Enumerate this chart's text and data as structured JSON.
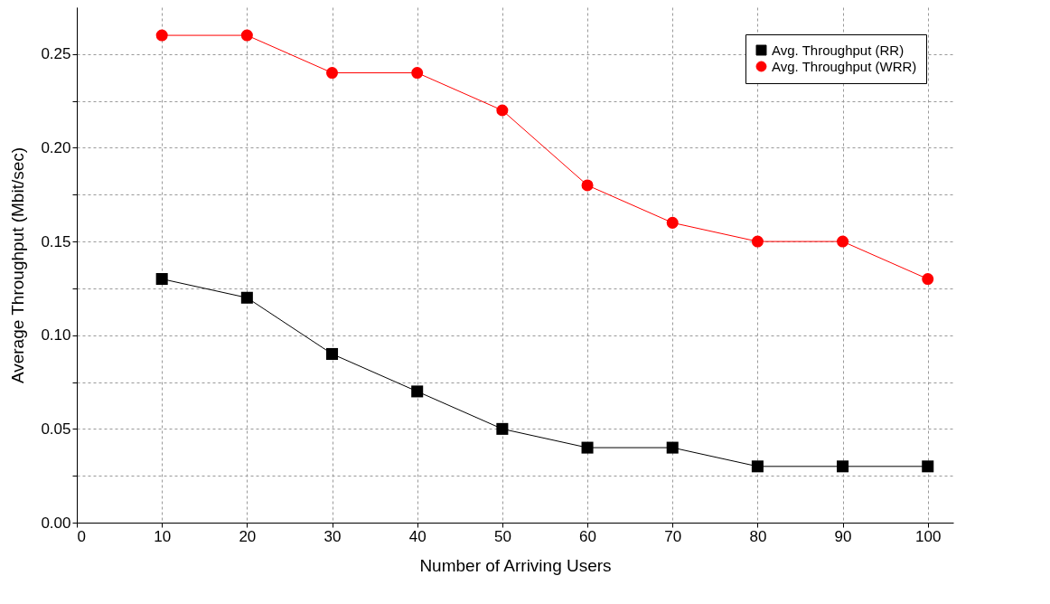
{
  "chart_data": {
    "type": "line",
    "xlabel": "Number of Arriving Users",
    "ylabel": "Average Throughput (Mbit/sec)",
    "x": [
      10,
      20,
      30,
      40,
      50,
      60,
      70,
      80,
      90,
      100
    ],
    "series": [
      {
        "name": "Avg. Throughput (RR)",
        "color": "#000000",
        "marker": "square",
        "values": [
          0.13,
          0.12,
          0.09,
          0.07,
          0.05,
          0.04,
          0.04,
          0.03,
          0.03,
          0.03
        ]
      },
      {
        "name": "Avg. Throughput (WRR)",
        "color": "#ff0000",
        "marker": "circle",
        "values": [
          0.26,
          0.26,
          0.24,
          0.24,
          0.22,
          0.18,
          0.16,
          0.15,
          0.15,
          0.13
        ]
      }
    ],
    "xlim": [
      0,
      103
    ],
    "xticks": [
      0,
      10,
      20,
      30,
      40,
      50,
      60,
      70,
      80,
      90,
      100
    ],
    "ylim": [
      0,
      0.275
    ],
    "yticks": [
      {
        "value": 0,
        "label": "0.00"
      },
      {
        "value": 0.025,
        "label": null
      },
      {
        "value": 0.05,
        "label": "0.05"
      },
      {
        "value": 0.075,
        "label": null
      },
      {
        "value": 0.1,
        "label": "0.10"
      },
      {
        "value": 0.125,
        "label": null
      },
      {
        "value": 0.15,
        "label": "0.15"
      },
      {
        "value": 0.175,
        "label": null
      },
      {
        "value": 0.2,
        "label": "0.20"
      },
      {
        "value": 0.225,
        "label": null
      },
      {
        "value": 0.25,
        "label": "0.25"
      }
    ],
    "grid": true,
    "legend": "top right",
    "line_style": "solid"
  }
}
